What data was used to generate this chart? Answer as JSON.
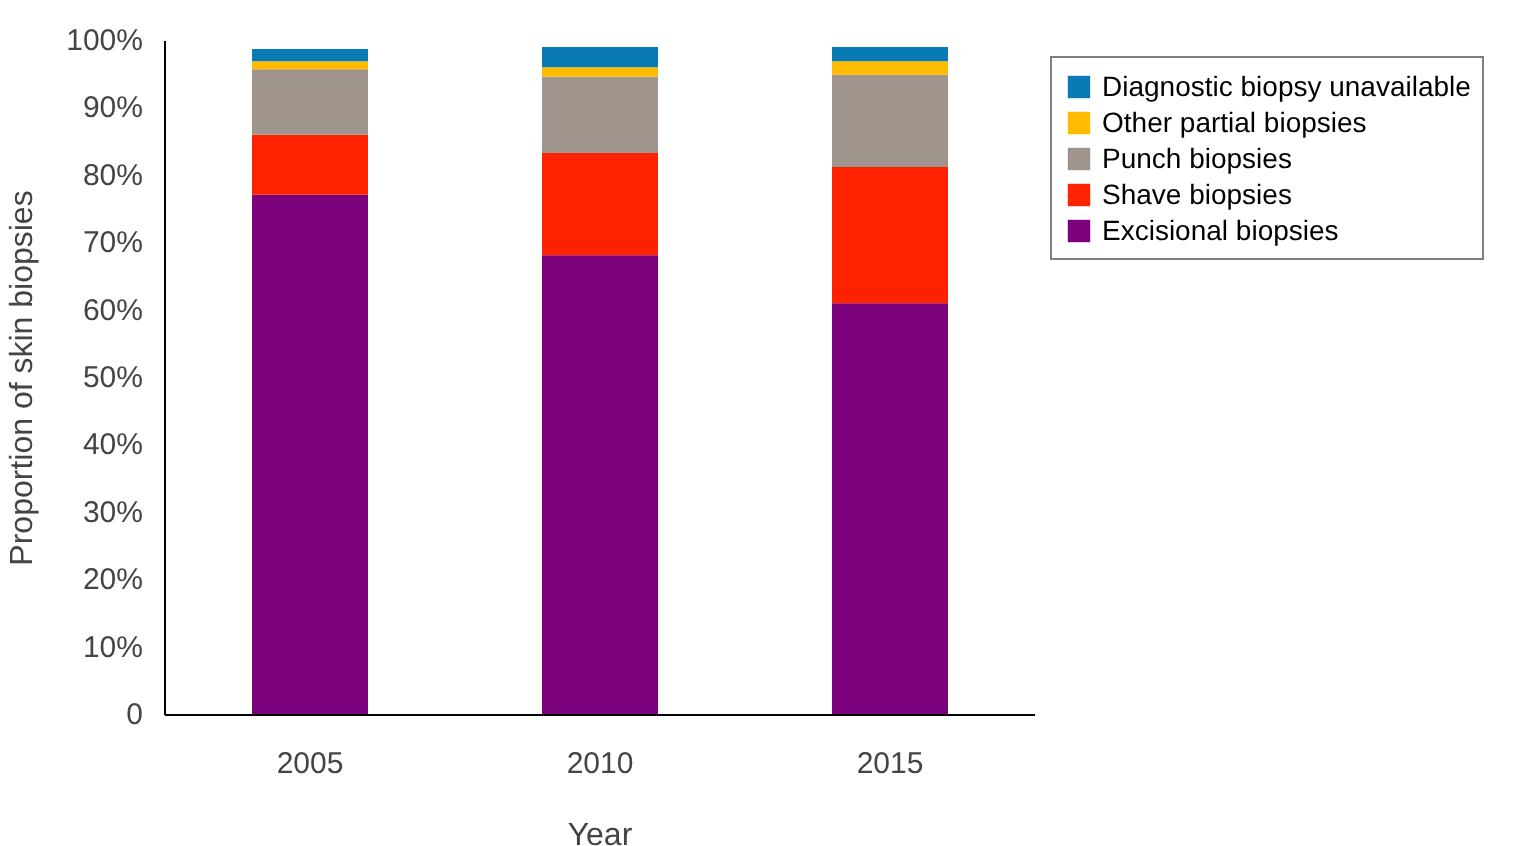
{
  "chart_data": {
    "type": "bar",
    "stacked": true,
    "xlabel": "Year",
    "ylabel": "Proportion of skin biopsies",
    "categories": [
      "2005",
      "2010",
      "2015"
    ],
    "series": [
      {
        "name": "Excisional biopsies",
        "color": "#7b007b",
        "values": [
          77.2,
          68.2,
          61.1
        ]
      },
      {
        "name": "Shave biopsies",
        "color": "#ff2200",
        "values": [
          8.9,
          15.2,
          20.2
        ]
      },
      {
        "name": "Punch biopsies",
        "color": "#a0958c",
        "values": [
          9.7,
          11.3,
          13.7
        ]
      },
      {
        "name": "Other partial biopsies",
        "color": "#ffbb00",
        "values": [
          1.2,
          1.4,
          2.0
        ]
      },
      {
        "name": "Diagnostic biopsy unavailable",
        "color": "#0a7ab5",
        "values": [
          1.8,
          3.0,
          2.1
        ]
      }
    ],
    "ylim": [
      0,
      100
    ],
    "yticks": [
      {
        "value": 0,
        "label": "0"
      },
      {
        "value": 10,
        "label": "10%"
      },
      {
        "value": 20,
        "label": "20%"
      },
      {
        "value": 30,
        "label": "30%"
      },
      {
        "value": 40,
        "label": "40%"
      },
      {
        "value": 50,
        "label": "50%"
      },
      {
        "value": 60,
        "label": "60%"
      },
      {
        "value": 70,
        "label": "70%"
      },
      {
        "value": 80,
        "label": "80%"
      },
      {
        "value": 90,
        "label": "90%"
      },
      {
        "value": 100,
        "label": "100%"
      }
    ],
    "grid": false,
    "legend": "right"
  }
}
